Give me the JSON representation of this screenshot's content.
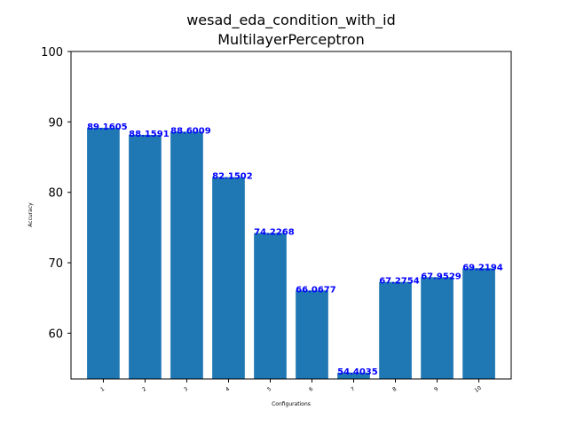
{
  "chart_data": {
    "type": "bar",
    "title": "wesad_eda_condition_with_id",
    "subtitle": "MultilayerPerceptron",
    "xlabel": "Configurations",
    "ylabel": "Accuracy",
    "categories": [
      "1",
      "2",
      "3",
      "4",
      "5",
      "6",
      "7",
      "8",
      "9",
      "10"
    ],
    "values": [
      89.1605,
      88.1591,
      88.6009,
      82.1502,
      74.2268,
      66.0677,
      54.4035,
      67.2754,
      67.9529,
      69.2194
    ],
    "data_labels": [
      "89.1605",
      "88.1591",
      "88.6009",
      "82.1502",
      "74.2268",
      "66.0677",
      "54.4035",
      "67.2754",
      "67.9529",
      "69.2194"
    ],
    "ylim": [
      53.5,
      100
    ],
    "yticks": [
      "60",
      "70",
      "80",
      "90",
      "100"
    ],
    "grid": false,
    "colors": {
      "bar": "#1f77b4",
      "label": "#0000ff"
    }
  }
}
